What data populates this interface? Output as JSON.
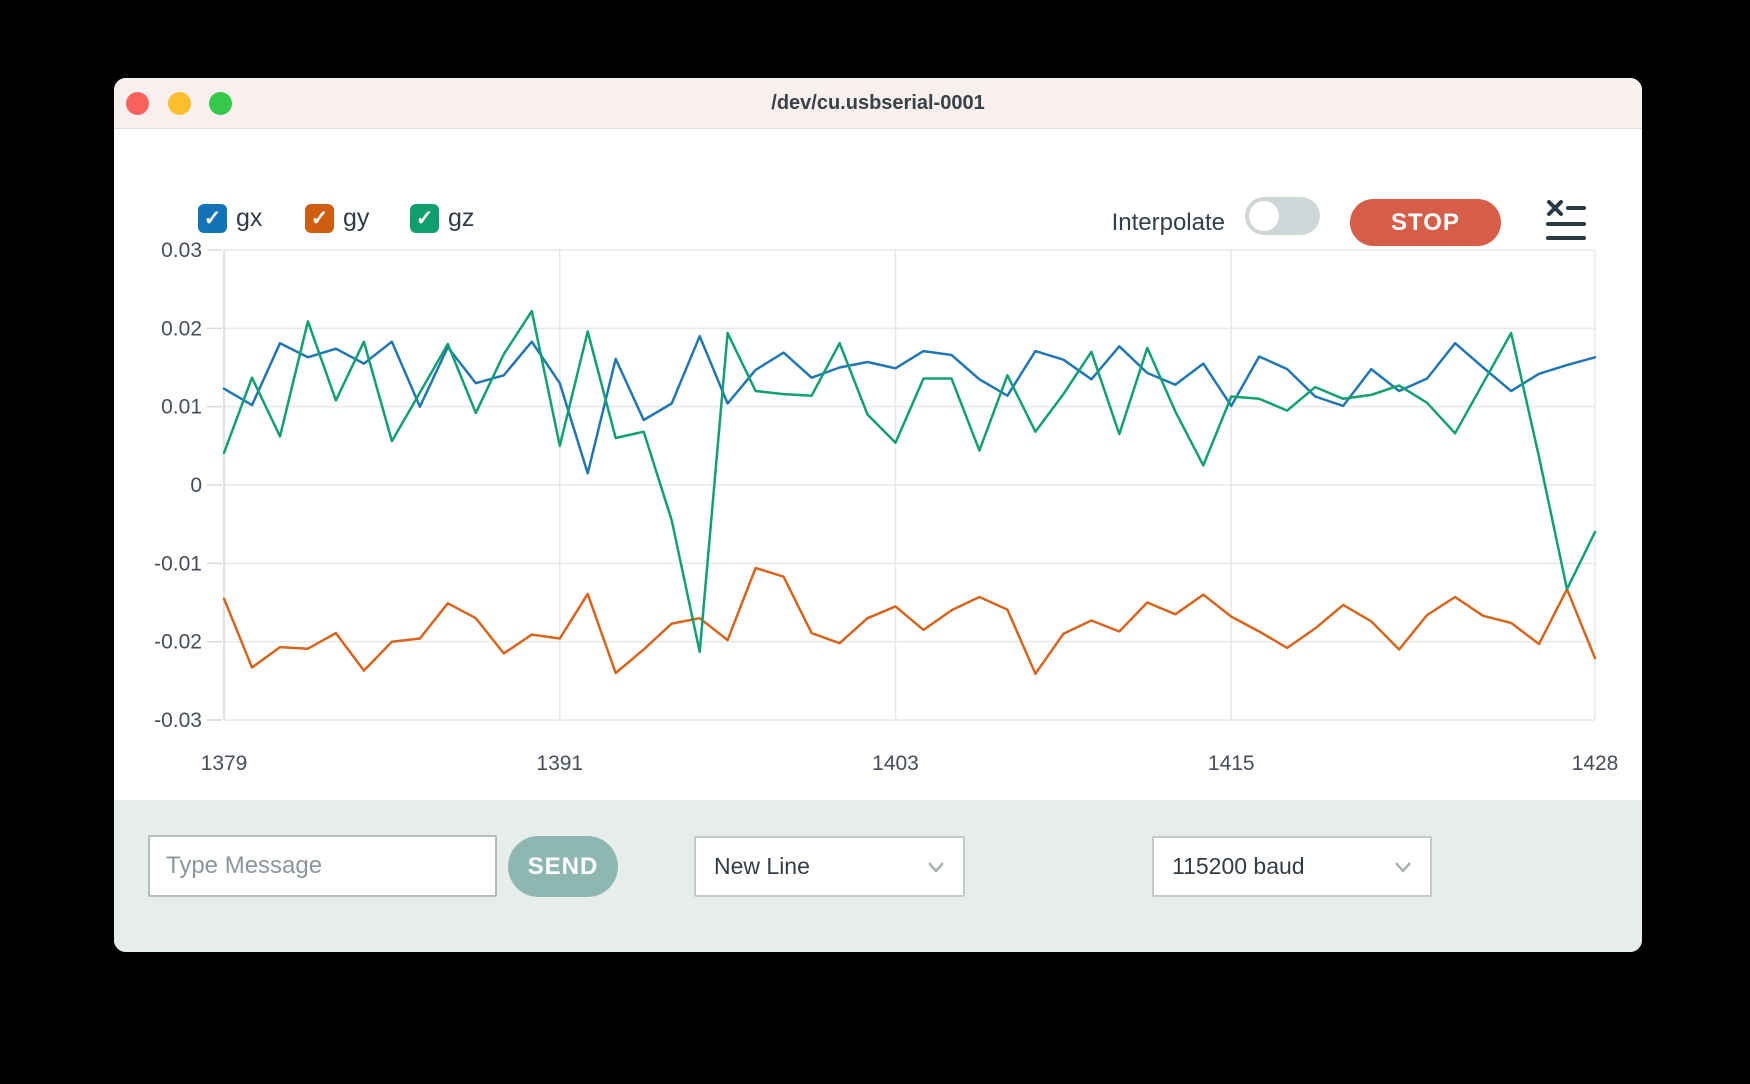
{
  "window": {
    "title": "/dev/cu.usbserial-0001"
  },
  "toolbar": {
    "check_glyph": "✓",
    "series_toggles": [
      {
        "label": "gx",
        "color": "#1273b6",
        "checked": true
      },
      {
        "label": "gy",
        "color": "#cf5e11",
        "checked": true
      },
      {
        "label": "gz",
        "color": "#0e9e6f",
        "checked": true
      }
    ],
    "interpolate_label": "Interpolate",
    "interpolate_on": false,
    "stop_label": "STOP"
  },
  "chart_data": {
    "type": "line",
    "title": "",
    "xlabel": "",
    "ylabel": "",
    "grid": true,
    "legend_position": "top-left-as-checkboxes",
    "x_start": 1379,
    "x_end": 1428,
    "x_tick_labels": [
      1379,
      1391,
      1403,
      1415,
      1428
    ],
    "ylim": [
      -0.03,
      0.03
    ],
    "y_tick_step": 0.01,
    "series": [
      {
        "name": "gx",
        "color": "#2077b4",
        "values": [
          0.0123,
          0.0102,
          0.0181,
          0.0163,
          0.0174,
          0.0155,
          0.0183,
          0.01,
          0.0176,
          0.013,
          0.014,
          0.0183,
          0.013,
          0.0015,
          0.0161,
          0.0083,
          0.0104,
          0.019,
          0.0104,
          0.0147,
          0.0169,
          0.0137,
          0.015,
          0.0157,
          0.0149,
          0.0171,
          0.0166,
          0.0135,
          0.0114,
          0.0171,
          0.016,
          0.0135,
          0.0177,
          0.0143,
          0.0128,
          0.0155,
          0.0101,
          0.0164,
          0.0148,
          0.0113,
          0.0101,
          0.0148,
          0.012,
          0.0136,
          0.0181,
          0.015,
          0.012,
          0.0142,
          0.0153,
          0.0163
        ]
      },
      {
        "name": "gy",
        "color": "#d9641c",
        "values": [
          -0.0145,
          -0.0233,
          -0.0207,
          -0.0209,
          -0.0189,
          -0.0237,
          -0.02,
          -0.0196,
          -0.0151,
          -0.017,
          -0.0215,
          -0.0191,
          -0.0196,
          -0.0139,
          -0.024,
          -0.021,
          -0.0177,
          -0.017,
          -0.0198,
          -0.0106,
          -0.0117,
          -0.0189,
          -0.0202,
          -0.017,
          -0.0155,
          -0.0185,
          -0.016,
          -0.0143,
          -0.0159,
          -0.0241,
          -0.019,
          -0.0173,
          -0.0187,
          -0.015,
          -0.0165,
          -0.014,
          -0.0168,
          -0.0187,
          -0.0208,
          -0.0183,
          -0.0153,
          -0.0174,
          -0.021,
          -0.0166,
          -0.0143,
          -0.0167,
          -0.0176,
          -0.0203,
          -0.0133,
          -0.0221
        ]
      },
      {
        "name": "gz",
        "color": "#10a173",
        "values": [
          0.0041,
          0.0137,
          0.0062,
          0.0209,
          0.0108,
          0.0183,
          0.0056,
          0.0118,
          0.018,
          0.0092,
          0.0167,
          0.0222,
          0.005,
          0.0196,
          0.006,
          0.0068,
          -0.0045,
          -0.0213,
          0.0194,
          0.012,
          0.0116,
          0.0114,
          0.0181,
          0.009,
          0.0054,
          0.0136,
          0.0136,
          0.0044,
          0.014,
          0.0068,
          0.0116,
          0.017,
          0.0065,
          0.0175,
          0.0094,
          0.0025,
          0.0113,
          0.011,
          0.0095,
          0.0125,
          0.011,
          0.0115,
          0.0127,
          0.0105,
          0.0066,
          0.013,
          0.0194,
          0.0036,
          -0.0133,
          -0.006
        ]
      }
    ]
  },
  "message_bar": {
    "input_placeholder": "Type Message",
    "send_label": "SEND",
    "line_ending_selected": "New Line",
    "baud_selected": "115200 baud"
  },
  "colors": {
    "accent_stop": "#d65d48",
    "accent_send": "#8fb7b1",
    "titlebar_bg": "#f7f0ef",
    "bottombar_bg": "#e6edeb",
    "grid_line": "#e6e9ea",
    "axis_text": "#454e58"
  }
}
